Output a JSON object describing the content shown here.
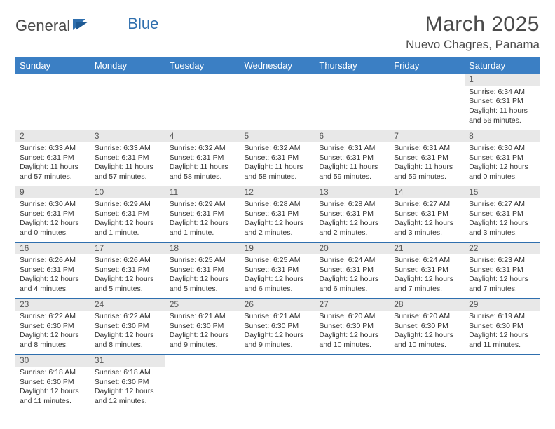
{
  "logo": {
    "part1": "General",
    "part2": "Blue"
  },
  "title": "March 2025",
  "location": "Nuevo Chagres, Panama",
  "day_headers": [
    "Sunday",
    "Monday",
    "Tuesday",
    "Wednesday",
    "Thursday",
    "Friday",
    "Saturday"
  ],
  "colors": {
    "header_bg": "#3b7fc4",
    "header_text": "#ffffff",
    "border": "#2f6fae",
    "daynum_bg": "#e8e8e8",
    "text": "#333333",
    "logo_gray": "#4a4a4a",
    "logo_blue": "#2f6fae"
  },
  "weeks": [
    [
      {
        "n": "",
        "empty": true
      },
      {
        "n": "",
        "empty": true
      },
      {
        "n": "",
        "empty": true
      },
      {
        "n": "",
        "empty": true
      },
      {
        "n": "",
        "empty": true
      },
      {
        "n": "",
        "empty": true
      },
      {
        "n": "1",
        "sr": "Sunrise: 6:34 AM",
        "ss": "Sunset: 6:31 PM",
        "dl": "Daylight: 11 hours and 56 minutes."
      }
    ],
    [
      {
        "n": "2",
        "sr": "Sunrise: 6:33 AM",
        "ss": "Sunset: 6:31 PM",
        "dl": "Daylight: 11 hours and 57 minutes."
      },
      {
        "n": "3",
        "sr": "Sunrise: 6:33 AM",
        "ss": "Sunset: 6:31 PM",
        "dl": "Daylight: 11 hours and 57 minutes."
      },
      {
        "n": "4",
        "sr": "Sunrise: 6:32 AM",
        "ss": "Sunset: 6:31 PM",
        "dl": "Daylight: 11 hours and 58 minutes."
      },
      {
        "n": "5",
        "sr": "Sunrise: 6:32 AM",
        "ss": "Sunset: 6:31 PM",
        "dl": "Daylight: 11 hours and 58 minutes."
      },
      {
        "n": "6",
        "sr": "Sunrise: 6:31 AM",
        "ss": "Sunset: 6:31 PM",
        "dl": "Daylight: 11 hours and 59 minutes."
      },
      {
        "n": "7",
        "sr": "Sunrise: 6:31 AM",
        "ss": "Sunset: 6:31 PM",
        "dl": "Daylight: 11 hours and 59 minutes."
      },
      {
        "n": "8",
        "sr": "Sunrise: 6:30 AM",
        "ss": "Sunset: 6:31 PM",
        "dl": "Daylight: 12 hours and 0 minutes."
      }
    ],
    [
      {
        "n": "9",
        "sr": "Sunrise: 6:30 AM",
        "ss": "Sunset: 6:31 PM",
        "dl": "Daylight: 12 hours and 0 minutes."
      },
      {
        "n": "10",
        "sr": "Sunrise: 6:29 AM",
        "ss": "Sunset: 6:31 PM",
        "dl": "Daylight: 12 hours and 1 minute."
      },
      {
        "n": "11",
        "sr": "Sunrise: 6:29 AM",
        "ss": "Sunset: 6:31 PM",
        "dl": "Daylight: 12 hours and 1 minute."
      },
      {
        "n": "12",
        "sr": "Sunrise: 6:28 AM",
        "ss": "Sunset: 6:31 PM",
        "dl": "Daylight: 12 hours and 2 minutes."
      },
      {
        "n": "13",
        "sr": "Sunrise: 6:28 AM",
        "ss": "Sunset: 6:31 PM",
        "dl": "Daylight: 12 hours and 2 minutes."
      },
      {
        "n": "14",
        "sr": "Sunrise: 6:27 AM",
        "ss": "Sunset: 6:31 PM",
        "dl": "Daylight: 12 hours and 3 minutes."
      },
      {
        "n": "15",
        "sr": "Sunrise: 6:27 AM",
        "ss": "Sunset: 6:31 PM",
        "dl": "Daylight: 12 hours and 3 minutes."
      }
    ],
    [
      {
        "n": "16",
        "sr": "Sunrise: 6:26 AM",
        "ss": "Sunset: 6:31 PM",
        "dl": "Daylight: 12 hours and 4 minutes."
      },
      {
        "n": "17",
        "sr": "Sunrise: 6:26 AM",
        "ss": "Sunset: 6:31 PM",
        "dl": "Daylight: 12 hours and 5 minutes."
      },
      {
        "n": "18",
        "sr": "Sunrise: 6:25 AM",
        "ss": "Sunset: 6:31 PM",
        "dl": "Daylight: 12 hours and 5 minutes."
      },
      {
        "n": "19",
        "sr": "Sunrise: 6:25 AM",
        "ss": "Sunset: 6:31 PM",
        "dl": "Daylight: 12 hours and 6 minutes."
      },
      {
        "n": "20",
        "sr": "Sunrise: 6:24 AM",
        "ss": "Sunset: 6:31 PM",
        "dl": "Daylight: 12 hours and 6 minutes."
      },
      {
        "n": "21",
        "sr": "Sunrise: 6:24 AM",
        "ss": "Sunset: 6:31 PM",
        "dl": "Daylight: 12 hours and 7 minutes."
      },
      {
        "n": "22",
        "sr": "Sunrise: 6:23 AM",
        "ss": "Sunset: 6:31 PM",
        "dl": "Daylight: 12 hours and 7 minutes."
      }
    ],
    [
      {
        "n": "23",
        "sr": "Sunrise: 6:22 AM",
        "ss": "Sunset: 6:30 PM",
        "dl": "Daylight: 12 hours and 8 minutes."
      },
      {
        "n": "24",
        "sr": "Sunrise: 6:22 AM",
        "ss": "Sunset: 6:30 PM",
        "dl": "Daylight: 12 hours and 8 minutes."
      },
      {
        "n": "25",
        "sr": "Sunrise: 6:21 AM",
        "ss": "Sunset: 6:30 PM",
        "dl": "Daylight: 12 hours and 9 minutes."
      },
      {
        "n": "26",
        "sr": "Sunrise: 6:21 AM",
        "ss": "Sunset: 6:30 PM",
        "dl": "Daylight: 12 hours and 9 minutes."
      },
      {
        "n": "27",
        "sr": "Sunrise: 6:20 AM",
        "ss": "Sunset: 6:30 PM",
        "dl": "Daylight: 12 hours and 10 minutes."
      },
      {
        "n": "28",
        "sr": "Sunrise: 6:20 AM",
        "ss": "Sunset: 6:30 PM",
        "dl": "Daylight: 12 hours and 10 minutes."
      },
      {
        "n": "29",
        "sr": "Sunrise: 6:19 AM",
        "ss": "Sunset: 6:30 PM",
        "dl": "Daylight: 12 hours and 11 minutes."
      }
    ],
    [
      {
        "n": "30",
        "sr": "Sunrise: 6:18 AM",
        "ss": "Sunset: 6:30 PM",
        "dl": "Daylight: 12 hours and 11 minutes."
      },
      {
        "n": "31",
        "sr": "Sunrise: 6:18 AM",
        "ss": "Sunset: 6:30 PM",
        "dl": "Daylight: 12 hours and 12 minutes."
      },
      {
        "n": "",
        "empty": true
      },
      {
        "n": "",
        "empty": true
      },
      {
        "n": "",
        "empty": true
      },
      {
        "n": "",
        "empty": true
      },
      {
        "n": "",
        "empty": true
      }
    ]
  ]
}
